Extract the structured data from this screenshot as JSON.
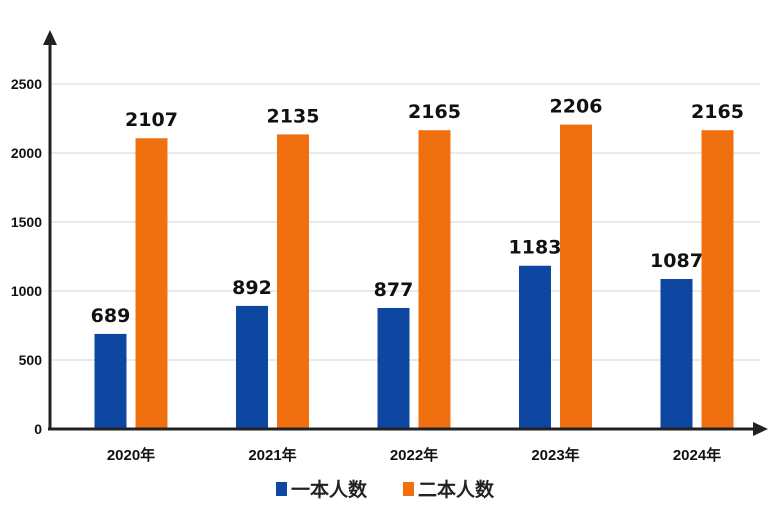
{
  "chart_data": {
    "type": "bar",
    "categories": [
      "2020年",
      "2021年",
      "2022年",
      "2023年",
      "2024年"
    ],
    "series": [
      {
        "name": "一本人数",
        "values": [
          689,
          892,
          877,
          1183,
          1087
        ],
        "color": "#0d47a1"
      },
      {
        "name": "二本人数",
        "values": [
          2107,
          2135,
          2165,
          2206,
          2165
        ],
        "color": "#f07010"
      }
    ],
    "yticks": [
      0,
      500,
      1000,
      1500,
      2000,
      2500
    ],
    "ylim": [
      0,
      2500
    ],
    "grid": true,
    "legend_position": "bottom",
    "title": "",
    "xlabel": "",
    "ylabel": ""
  }
}
